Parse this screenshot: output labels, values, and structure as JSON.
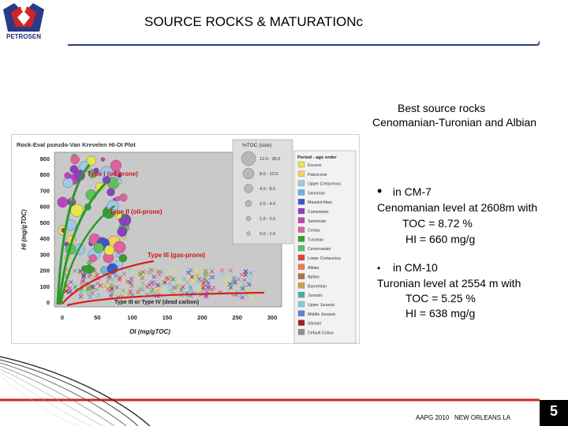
{
  "header": {
    "logo_text": "PETROSEN",
    "title": "SOURCE ROCKS & MATURATIONc"
  },
  "summary": {
    "line1": "Best source rocks",
    "line2": "Cenomanian-Turonian and Albian"
  },
  "well_cm7": {
    "title": "in CM-7",
    "level": "Cenomanian level at 2608m with",
    "toc": "TOC = 8.72 %",
    "hi": "HI = 660 mg/g"
  },
  "well_cm10": {
    "title": "in CM-10",
    "level": "Turonian level at 2554 m with",
    "toc": "TOC = 5.25 %",
    "hi": "HI = 638 mg/g"
  },
  "plot": {
    "title": "Rock-Eval pseudo-Van Krevelen HI-OI Plot",
    "xlabel": "OI (mg/gTOC)",
    "ylabel": "HI (mg/gTOC)",
    "x_ticks": [
      "0",
      "50",
      "100",
      "150",
      "200",
      "250",
      "300"
    ],
    "y_ticks": [
      "0",
      "100",
      "200",
      "300",
      "400",
      "500",
      "600",
      "700",
      "800",
      "900"
    ],
    "curve_labels": {
      "type1": "Type I (oil prone)",
      "type2": "Type II (oil-prone)",
      "type3": "Type III (gas-prone)",
      "type4": "Type III or Type IV (dead carbon)"
    },
    "colors": {
      "curve_green": "#2a9a2a",
      "curve_red": "#d42020",
      "curve_label_red": "#c81818",
      "plot_bg": "#c9c9c9"
    },
    "toc_legend": {
      "title": "%TOC (size)",
      "items": [
        "12.0 - 35.0",
        "8.0 - 12.0",
        "4.0 - 8.0",
        "2.0 - 4.0",
        "1.0 - 2.0",
        "0.0 - 1.0"
      ]
    },
    "period_legend": {
      "title": "Period - age order",
      "items": [
        {
          "label": "Eocene",
          "color": "#e6e64a"
        },
        {
          "label": "Paleocene",
          "color": "#f0d060"
        },
        {
          "label": "Upper Cretaceous",
          "color": "#a0c8e8"
        },
        {
          "label": "Senonian",
          "color": "#70b0e0"
        },
        {
          "label": "Maastrichtian",
          "color": "#3a58c8"
        },
        {
          "label": "Campanian",
          "color": "#8a40c0"
        },
        {
          "label": "Santonian",
          "color": "#c040c0"
        },
        {
          "label": "Coniac",
          "color": "#e060a0"
        },
        {
          "label": "Turonian",
          "color": "#30a030"
        },
        {
          "label": "Cenomanian",
          "color": "#60c060"
        },
        {
          "label": "Lower Cretaceous",
          "color": "#e04040"
        },
        {
          "label": "Albian",
          "color": "#f08040"
        },
        {
          "label": "Aptian",
          "color": "#b07040"
        },
        {
          "label": "Barremian",
          "color": "#d0a040"
        },
        {
          "label": "Jurassic",
          "color": "#40b0b0"
        },
        {
          "label": "Upper Jurassic",
          "color": "#80d0d0"
        },
        {
          "label": "Middle Jurassic",
          "color": "#6080e0"
        },
        {
          "label": "Silurian",
          "color": "#a02020"
        },
        {
          "label": "Default Colour",
          "color": "#909090"
        }
      ]
    }
  },
  "footer": {
    "conference": "AAPG 2010",
    "city": "NEW ORLEANS  LA",
    "page": "5"
  }
}
